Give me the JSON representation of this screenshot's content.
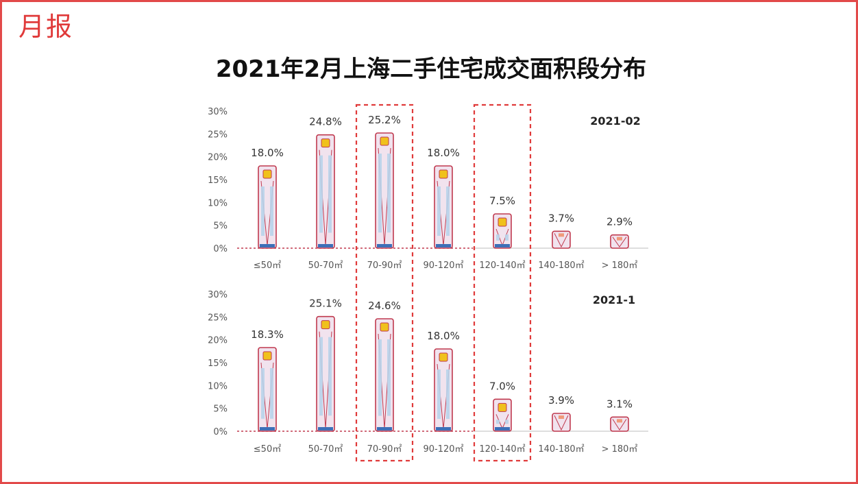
{
  "logo": "月报",
  "title": "2021年2月上海二手住宅成交面积段分布",
  "colors": {
    "frame": "#e24a4a",
    "bar_fill": "#f1e3ee",
    "bar_stroke": "#c0394e",
    "bar_glass": "#b8d3ea",
    "bar_light": "#f0c11c",
    "highlight_box": "#e03a3a",
    "baseline": "#c9c9c9"
  },
  "chart_data": [
    {
      "type": "bar",
      "title": "2021-02",
      "categories": [
        "≤50㎡",
        "50-70㎡",
        "70-90㎡",
        "90-120㎡",
        "120-140㎡",
        "140-180㎡",
        "> 180㎡"
      ],
      "values": [
        18.0,
        24.8,
        25.2,
        18.0,
        7.5,
        3.7,
        2.9
      ],
      "value_labels": [
        "18.0%",
        "24.8%",
        "25.2%",
        "18.0%",
        "7.5%",
        "3.7%",
        "2.9%"
      ],
      "y_ticks": [
        "0%",
        "5%",
        "10%",
        "15%",
        "20%",
        "25%",
        "30%"
      ],
      "ylim": [
        0,
        30
      ],
      "highlighted_categories": [
        "70-90㎡",
        "120-140㎡"
      ],
      "grid": false
    },
    {
      "type": "bar",
      "title": "2021-1",
      "categories": [
        "≤50㎡",
        "50-70㎡",
        "70-90㎡",
        "90-120㎡",
        "120-140㎡",
        "140-180㎡",
        "> 180㎡"
      ],
      "values": [
        18.3,
        25.1,
        24.6,
        18.0,
        7.0,
        3.9,
        3.1
      ],
      "value_labels": [
        "18.3%",
        "25.1%",
        "24.6%",
        "18.0%",
        "7.0%",
        "3.9%",
        "3.1%"
      ],
      "y_ticks": [
        "0%",
        "5%",
        "10%",
        "15%",
        "20%",
        "25%",
        "30%"
      ],
      "ylim": [
        0,
        30
      ],
      "highlighted_categories": [
        "70-90㎡",
        "120-140㎡"
      ],
      "grid": false
    }
  ]
}
